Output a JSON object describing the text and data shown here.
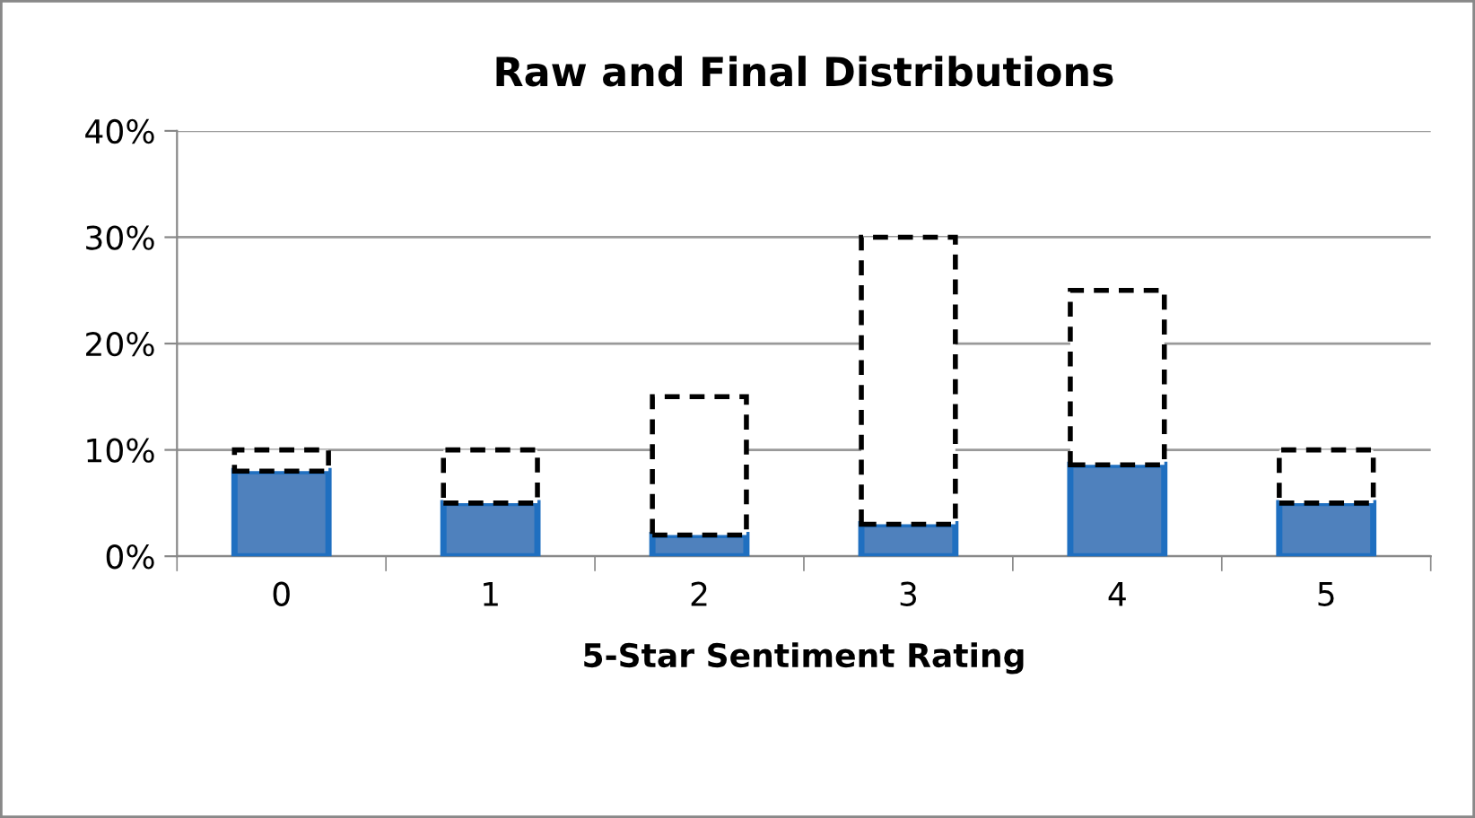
{
  "chart_data": {
    "type": "bar",
    "title": "Raw and Final Distributions",
    "xlabel": "5-Star Sentiment Rating",
    "categories": [
      "0",
      "1",
      "2",
      "3",
      "4",
      "5"
    ],
    "stacked": true,
    "series": [
      {
        "color": "#4f81bd",
        "values": [
          8,
          5,
          2,
          3,
          8.6,
          5
        ]
      },
      {
        "color": "#ffffff",
        "line_style": "dashed",
        "values": [
          2,
          5,
          13,
          27,
          16.4,
          5
        ]
      }
    ],
    "ylim": [
      0,
      40
    ],
    "yticks": [
      {
        "value": 0,
        "label": "0%"
      },
      {
        "value": 10,
        "label": "10%"
      },
      {
        "value": 20,
        "label": "20%"
      },
      {
        "value": 30,
        "label": "30%"
      },
      {
        "value": 40,
        "label": "40%"
      }
    ],
    "grid": "y",
    "legend": false
  }
}
